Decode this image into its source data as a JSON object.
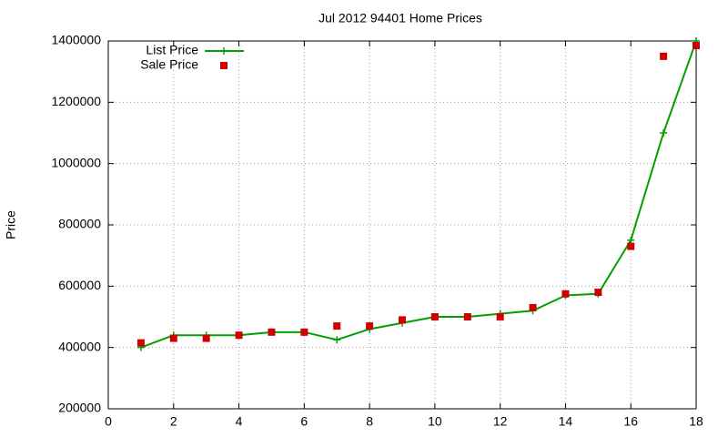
{
  "chart_data": {
    "type": "line",
    "title": "Jul 2012 94401 Home Prices",
    "y_label": "Price",
    "x": [
      1,
      2,
      3,
      4,
      5,
      6,
      7,
      8,
      9,
      10,
      11,
      12,
      13,
      14,
      15,
      16,
      17,
      18
    ],
    "series": [
      {
        "name": "List Price",
        "color": "#00a000",
        "line": true,
        "marker": "plus",
        "values": [
          400000,
          440000,
          440000,
          440000,
          450000,
          450000,
          425000,
          460000,
          480000,
          500000,
          500000,
          510000,
          520000,
          570000,
          575000,
          750000,
          1100000,
          1400000
        ]
      },
      {
        "name": "Sale Price",
        "color": "#d00000",
        "line": false,
        "marker": "square",
        "values": [
          415000,
          430000,
          430000,
          440000,
          450000,
          450000,
          470000,
          470000,
          490000,
          500000,
          500000,
          500000,
          530000,
          575000,
          580000,
          730000,
          1350000,
          1385000
        ]
      }
    ],
    "xlim": [
      0,
      18
    ],
    "xticks": [
      0,
      2,
      4,
      6,
      8,
      10,
      12,
      14,
      16,
      18
    ],
    "ylim": [
      200000,
      1400000
    ],
    "yticks": [
      200000,
      400000,
      600000,
      800000,
      1000000,
      1200000,
      1400000
    ],
    "grid": true,
    "legend": "top-left"
  }
}
